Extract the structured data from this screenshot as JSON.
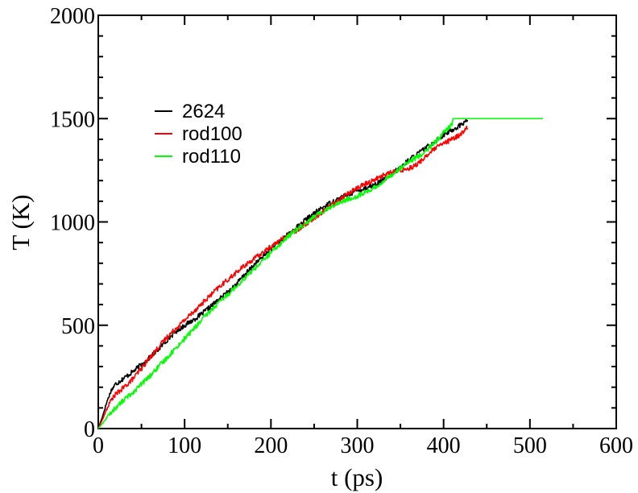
{
  "chart_data": {
    "type": "line",
    "xlabel": "t (ps)",
    "ylabel": "T (K)",
    "xlim": [
      0,
      600
    ],
    "ylim": [
      0,
      2000
    ],
    "x_ticks": [
      0,
      100,
      200,
      300,
      400,
      500,
      600
    ],
    "y_ticks": [
      0,
      500,
      1000,
      1500,
      2000
    ],
    "grid": false,
    "legend_position": "upper-left",
    "series": [
      {
        "name": "2624",
        "color": "#000000",
        "points": [
          [
            0,
            0
          ],
          [
            5,
            60
          ],
          [
            10,
            130
          ],
          [
            15,
            185
          ],
          [
            20,
            215
          ],
          [
            30,
            245
          ],
          [
            40,
            275
          ],
          [
            50,
            310
          ],
          [
            60,
            345
          ],
          [
            70,
            385
          ],
          [
            80,
            430
          ],
          [
            90,
            470
          ],
          [
            100,
            500
          ],
          [
            110,
            525
          ],
          [
            120,
            555
          ],
          [
            130,
            590
          ],
          [
            140,
            625
          ],
          [
            150,
            660
          ],
          [
            160,
            700
          ],
          [
            170,
            745
          ],
          [
            180,
            790
          ],
          [
            190,
            830
          ],
          [
            200,
            870
          ],
          [
            210,
            905
          ],
          [
            220,
            940
          ],
          [
            230,
            975
          ],
          [
            240,
            1010
          ],
          [
            250,
            1040
          ],
          [
            260,
            1070
          ],
          [
            270,
            1095
          ],
          [
            280,
            1115
          ],
          [
            290,
            1135
          ],
          [
            300,
            1150
          ],
          [
            310,
            1165
          ],
          [
            320,
            1180
          ],
          [
            330,
            1200
          ],
          [
            340,
            1230
          ],
          [
            350,
            1265
          ],
          [
            360,
            1300
          ],
          [
            370,
            1330
          ],
          [
            380,
            1360
          ],
          [
            390,
            1390
          ],
          [
            400,
            1420
          ],
          [
            410,
            1445
          ],
          [
            420,
            1470
          ],
          [
            428,
            1495
          ]
        ]
      },
      {
        "name": "rod100",
        "color": "#ff0000",
        "points": [
          [
            0,
            0
          ],
          [
            5,
            45
          ],
          [
            10,
            95
          ],
          [
            15,
            140
          ],
          [
            20,
            165
          ],
          [
            30,
            200
          ],
          [
            40,
            240
          ],
          [
            50,
            290
          ],
          [
            60,
            345
          ],
          [
            70,
            395
          ],
          [
            80,
            445
          ],
          [
            90,
            485
          ],
          [
            100,
            525
          ],
          [
            110,
            565
          ],
          [
            120,
            605
          ],
          [
            130,
            645
          ],
          [
            140,
            685
          ],
          [
            150,
            720
          ],
          [
            160,
            755
          ],
          [
            170,
            790
          ],
          [
            180,
            820
          ],
          [
            190,
            850
          ],
          [
            200,
            880
          ],
          [
            210,
            910
          ],
          [
            220,
            935
          ],
          [
            230,
            960
          ],
          [
            240,
            990
          ],
          [
            250,
            1020
          ],
          [
            260,
            1050
          ],
          [
            270,
            1080
          ],
          [
            280,
            1110
          ],
          [
            290,
            1140
          ],
          [
            300,
            1165
          ],
          [
            310,
            1185
          ],
          [
            320,
            1205
          ],
          [
            330,
            1225
          ],
          [
            340,
            1240
          ],
          [
            350,
            1250
          ],
          [
            360,
            1260
          ],
          [
            370,
            1280
          ],
          [
            380,
            1320
          ],
          [
            390,
            1355
          ],
          [
            400,
            1380
          ],
          [
            410,
            1400
          ],
          [
            420,
            1425
          ],
          [
            428,
            1460
          ]
        ]
      },
      {
        "name": "rod110",
        "color": "#00ff00",
        "points": [
          [
            0,
            0
          ],
          [
            5,
            25
          ],
          [
            10,
            55
          ],
          [
            20,
            100
          ],
          [
            30,
            140
          ],
          [
            40,
            175
          ],
          [
            50,
            215
          ],
          [
            60,
            255
          ],
          [
            70,
            300
          ],
          [
            80,
            345
          ],
          [
            90,
            390
          ],
          [
            100,
            435
          ],
          [
            110,
            480
          ],
          [
            120,
            525
          ],
          [
            130,
            570
          ],
          [
            140,
            610
          ],
          [
            150,
            650
          ],
          [
            160,
            690
          ],
          [
            170,
            730
          ],
          [
            180,
            770
          ],
          [
            190,
            810
          ],
          [
            200,
            850
          ],
          [
            210,
            890
          ],
          [
            220,
            930
          ],
          [
            230,
            965
          ],
          [
            240,
            995
          ],
          [
            250,
            1025
          ],
          [
            260,
            1050
          ],
          [
            270,
            1075
          ],
          [
            280,
            1095
          ],
          [
            290,
            1110
          ],
          [
            300,
            1125
          ],
          [
            310,
            1145
          ],
          [
            320,
            1165
          ],
          [
            330,
            1195
          ],
          [
            340,
            1230
          ],
          [
            350,
            1260
          ],
          [
            360,
            1290
          ],
          [
            370,
            1315
          ],
          [
            380,
            1345
          ],
          [
            390,
            1385
          ],
          [
            400,
            1430
          ],
          [
            410,
            1475
          ],
          [
            411,
            1500
          ],
          [
            515,
            1500
          ]
        ]
      }
    ]
  }
}
